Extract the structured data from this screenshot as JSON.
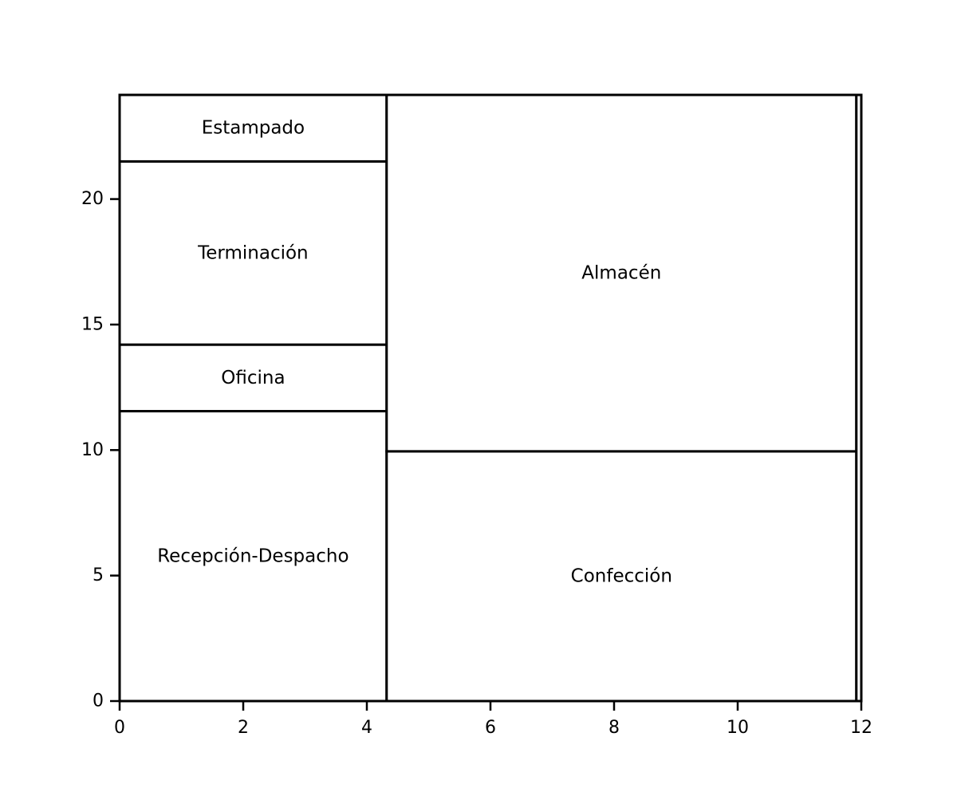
{
  "chart_data": {
    "type": "treemap",
    "title": "",
    "xlabel": "",
    "ylabel": "",
    "xlim": [
      0,
      12
    ],
    "ylim": [
      0,
      24.15
    ],
    "grid": false,
    "x_ticks": [
      {
        "value": 0,
        "label": "0"
      },
      {
        "value": 2,
        "label": "2"
      },
      {
        "value": 4,
        "label": "4"
      },
      {
        "value": 6,
        "label": "6"
      },
      {
        "value": 8,
        "label": "8"
      },
      {
        "value": 10,
        "label": "10"
      },
      {
        "value": 12,
        "label": "12"
      }
    ],
    "y_ticks": [
      {
        "value": 0,
        "label": "0"
      },
      {
        "value": 5,
        "label": "5"
      },
      {
        "value": 10,
        "label": "10"
      },
      {
        "value": 15,
        "label": "15"
      },
      {
        "value": 20,
        "label": "20"
      }
    ],
    "rects": [
      {
        "label": "Recepción-Despacho",
        "x0": 0,
        "x1": 4.32,
        "y0": 0,
        "y1": 11.55
      },
      {
        "label": "Oficina",
        "x0": 0,
        "x1": 4.32,
        "y0": 11.55,
        "y1": 14.2
      },
      {
        "label": "Terminación",
        "x0": 0,
        "x1": 4.32,
        "y0": 14.2,
        "y1": 21.5
      },
      {
        "label": "Estampado",
        "x0": 0,
        "x1": 4.32,
        "y0": 21.5,
        "y1": 24.15
      },
      {
        "label": "Confección",
        "x0": 4.32,
        "x1": 11.92,
        "y0": 0,
        "y1": 9.95
      },
      {
        "label": "Almacén",
        "x0": 4.32,
        "x1": 11.92,
        "y0": 9.95,
        "y1": 24.15
      },
      {
        "label": "",
        "x0": 11.92,
        "x1": 12,
        "y0": 0,
        "y1": 24.15
      }
    ]
  }
}
